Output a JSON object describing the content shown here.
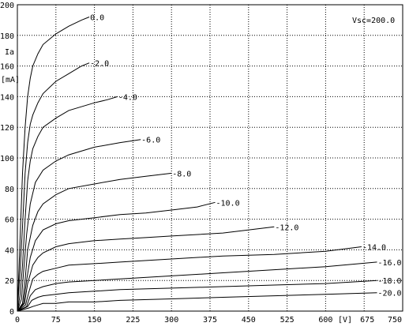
{
  "chart_data": {
    "type": "line",
    "title": "",
    "xlabel": "[V]",
    "ylabel": "Ia",
    "ylabel_unit": "[mA]",
    "annotation": "Vsc=200.0",
    "xlim": [
      0,
      750
    ],
    "ylim": [
      0,
      200
    ],
    "x_ticks": [
      0,
      75,
      150,
      225,
      300,
      375,
      450,
      525,
      600,
      675,
      750
    ],
    "y_ticks": [
      0,
      20,
      40,
      60,
      80,
      100,
      120,
      140,
      160,
      180,
      200
    ],
    "grid": true,
    "grid_style": "dotted",
    "colors": {
      "background": "#ffffff",
      "lines": "#000000",
      "grid": "#000000"
    },
    "series": [
      {
        "name": "0.0",
        "points": [
          [
            0,
            0
          ],
          [
            5,
            45
          ],
          [
            10,
            90
          ],
          [
            15,
            120
          ],
          [
            20,
            140
          ],
          [
            25,
            152
          ],
          [
            30,
            160
          ],
          [
            40,
            168
          ],
          [
            50,
            174
          ],
          [
            75,
            181
          ],
          [
            100,
            186
          ],
          [
            125,
            190
          ],
          [
            140,
            192
          ]
        ]
      },
      {
        "name": "-2.0",
        "points": [
          [
            0,
            0
          ],
          [
            5,
            25
          ],
          [
            10,
            55
          ],
          [
            15,
            90
          ],
          [
            20,
            110
          ],
          [
            25,
            122
          ],
          [
            30,
            128
          ],
          [
            40,
            136
          ],
          [
            50,
            142
          ],
          [
            75,
            150
          ],
          [
            100,
            155
          ],
          [
            125,
            160
          ],
          [
            140,
            162
          ]
        ]
      },
      {
        "name": "-4.0",
        "points": [
          [
            0,
            0
          ],
          [
            5,
            10
          ],
          [
            10,
            30
          ],
          [
            15,
            60
          ],
          [
            20,
            85
          ],
          [
            25,
            98
          ],
          [
            30,
            106
          ],
          [
            40,
            114
          ],
          [
            50,
            120
          ],
          [
            75,
            126
          ],
          [
            100,
            131
          ],
          [
            150,
            136
          ],
          [
            175,
            138
          ],
          [
            195,
            140
          ]
        ]
      },
      {
        "name": "-6.0",
        "points": [
          [
            0,
            0
          ],
          [
            8,
            8
          ],
          [
            12,
            25
          ],
          [
            18,
            50
          ],
          [
            25,
            70
          ],
          [
            35,
            84
          ],
          [
            50,
            92
          ],
          [
            75,
            98
          ],
          [
            100,
            102
          ],
          [
            150,
            107
          ],
          [
            200,
            110
          ],
          [
            240,
            112
          ]
        ]
      },
      {
        "name": "-8.0",
        "points": [
          [
            0,
            0
          ],
          [
            10,
            5
          ],
          [
            15,
            20
          ],
          [
            20,
            40
          ],
          [
            30,
            56
          ],
          [
            40,
            65
          ],
          [
            50,
            70
          ],
          [
            75,
            76
          ],
          [
            100,
            80
          ],
          [
            150,
            83
          ],
          [
            200,
            86
          ],
          [
            250,
            88
          ],
          [
            300,
            90
          ]
        ]
      },
      {
        "name": "-10.0",
        "points": [
          [
            0,
            0
          ],
          [
            12,
            5
          ],
          [
            18,
            20
          ],
          [
            25,
            35
          ],
          [
            35,
            46
          ],
          [
            50,
            53
          ],
          [
            75,
            57
          ],
          [
            100,
            59
          ],
          [
            150,
            61
          ],
          [
            200,
            63
          ],
          [
            250,
            64
          ],
          [
            300,
            66
          ],
          [
            350,
            68
          ],
          [
            385,
            71
          ]
        ]
      },
      {
        "name": "-12.0",
        "points": [
          [
            0,
            0
          ],
          [
            14,
            5
          ],
          [
            20,
            18
          ],
          [
            30,
            30
          ],
          [
            40,
            35
          ],
          [
            50,
            38
          ],
          [
            75,
            42
          ],
          [
            100,
            44
          ],
          [
            150,
            46
          ],
          [
            200,
            47
          ],
          [
            250,
            48
          ],
          [
            300,
            49
          ],
          [
            400,
            51
          ],
          [
            500,
            55
          ]
        ]
      },
      {
        "name": "-14.0",
        "points": [
          [
            0,
            0
          ],
          [
            16,
            4
          ],
          [
            22,
            12
          ],
          [
            30,
            21
          ],
          [
            40,
            24
          ],
          [
            50,
            26
          ],
          [
            75,
            28
          ],
          [
            100,
            30
          ],
          [
            150,
            31
          ],
          [
            200,
            32
          ],
          [
            300,
            34
          ],
          [
            400,
            36
          ],
          [
            500,
            37
          ],
          [
            600,
            39
          ],
          [
            670,
            42
          ]
        ]
      },
      {
        "name": "-16.0",
        "points": [
          [
            0,
            0
          ],
          [
            18,
            3
          ],
          [
            25,
            10
          ],
          [
            35,
            14
          ],
          [
            50,
            16
          ],
          [
            75,
            18
          ],
          [
            100,
            19
          ],
          [
            150,
            20
          ],
          [
            200,
            21
          ],
          [
            300,
            23
          ],
          [
            400,
            25
          ],
          [
            500,
            27
          ],
          [
            600,
            29
          ],
          [
            700,
            32
          ]
        ]
      },
      {
        "name": "-18.0",
        "points": [
          [
            0,
            0
          ],
          [
            20,
            3
          ],
          [
            28,
            7
          ],
          [
            40,
            9
          ],
          [
            50,
            10
          ],
          [
            75,
            11
          ],
          [
            100,
            12
          ],
          [
            150,
            13
          ],
          [
            200,
            14
          ],
          [
            300,
            15
          ],
          [
            400,
            16
          ],
          [
            500,
            17
          ],
          [
            600,
            18
          ],
          [
            700,
            20
          ]
        ]
      },
      {
        "name": "-20.0",
        "points": [
          [
            0,
            0
          ],
          [
            22,
            2
          ],
          [
            30,
            3
          ],
          [
            40,
            4
          ],
          [
            50,
            5
          ],
          [
            75,
            5
          ],
          [
            100,
            6
          ],
          [
            150,
            6
          ],
          [
            200,
            7
          ],
          [
            300,
            8
          ],
          [
            400,
            9
          ],
          [
            500,
            10
          ],
          [
            600,
            11
          ],
          [
            700,
            12
          ]
        ]
      }
    ],
    "curve_label_text": [
      "0.0",
      "-2.0",
      "-4.0",
      "-6.0",
      "-8.0",
      "-10.0",
      "-12.0",
      "-14.0",
      "-16.0",
      "-18.0",
      "-20.0"
    ]
  }
}
